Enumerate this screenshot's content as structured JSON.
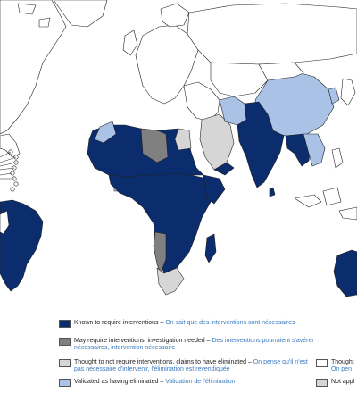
{
  "map": {
    "colors": {
      "known": "#0b2d6e",
      "may": "#808080",
      "thought": "#d6d6d6",
      "validated": "#a9c2e6",
      "not_applicable": "#d6d6d6",
      "land_default": "#ffffff",
      "border": "#222222"
    }
  },
  "legend": {
    "items": [
      {
        "key": "known",
        "en": "Known to require interventions",
        "sep": " – ",
        "fr": "On sait que des interventions sont nécessaires"
      },
      {
        "key": "may",
        "en": "May require interventions, investigation needed",
        "sep": " – ",
        "fr": "Des interventions pourraient s'avérer nécessaires, intervention nécessaire"
      },
      {
        "key": "thought",
        "en": "Thought to not require interventions, claims to have eliminated",
        "sep": " – ",
        "fr": "On pense qu'il n'est pas nécessaire d'intervenir, l'élimination est revendiquée"
      },
      {
        "key": "validated",
        "en": "Validated as having eliminated",
        "sep": " – ",
        "fr": "Validation de l'élimination"
      },
      {
        "key": "thought_right",
        "en": "Thought",
        "sep": "",
        "fr": "On pen"
      },
      {
        "key": "not_applicable",
        "en": "Not appl",
        "sep": "",
        "fr": ""
      }
    ]
  }
}
